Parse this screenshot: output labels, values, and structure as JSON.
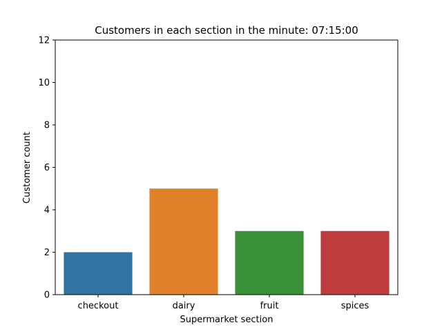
{
  "chart_data": {
    "type": "bar",
    "title": "Customers in each section in the minute: 07:15:00",
    "xlabel": "Supermarket section",
    "ylabel": "Customer count",
    "categories": [
      "checkout",
      "dairy",
      "fruit",
      "spices"
    ],
    "values": [
      2,
      5,
      3,
      3
    ],
    "colors": [
      "#3274a1",
      "#e1812c",
      "#3a923a",
      "#c03d3e"
    ],
    "ylim": [
      0,
      12
    ],
    "yticks": [
      0,
      2,
      4,
      6,
      8,
      10,
      12
    ],
    "grid": false,
    "legend": "none"
  }
}
